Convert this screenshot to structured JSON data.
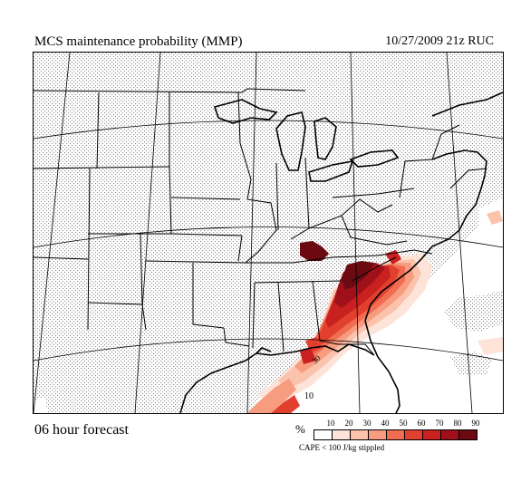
{
  "header": {
    "title": "MCS maintenance probability (MMP)",
    "run_info": "10/27/2009  21z  RUC"
  },
  "footer": {
    "forecast": "06 hour forecast",
    "note": "CAPE < 100 J/kg stippled"
  },
  "map": {
    "contour_labels": [
      "30",
      "10"
    ],
    "colors": {
      "stipple": "#9a9a9a",
      "ocean_border": "#000000"
    }
  },
  "legend": {
    "unit": "%",
    "ticks": [
      "10",
      "20",
      "30",
      "40",
      "50",
      "60",
      "70",
      "80",
      "90"
    ],
    "colors": [
      "#ffffff",
      "#fde3d8",
      "#fbc2ac",
      "#f79c7e",
      "#f16d52",
      "#e2402f",
      "#c92020",
      "#a0101a",
      "#6b0a10"
    ]
  }
}
